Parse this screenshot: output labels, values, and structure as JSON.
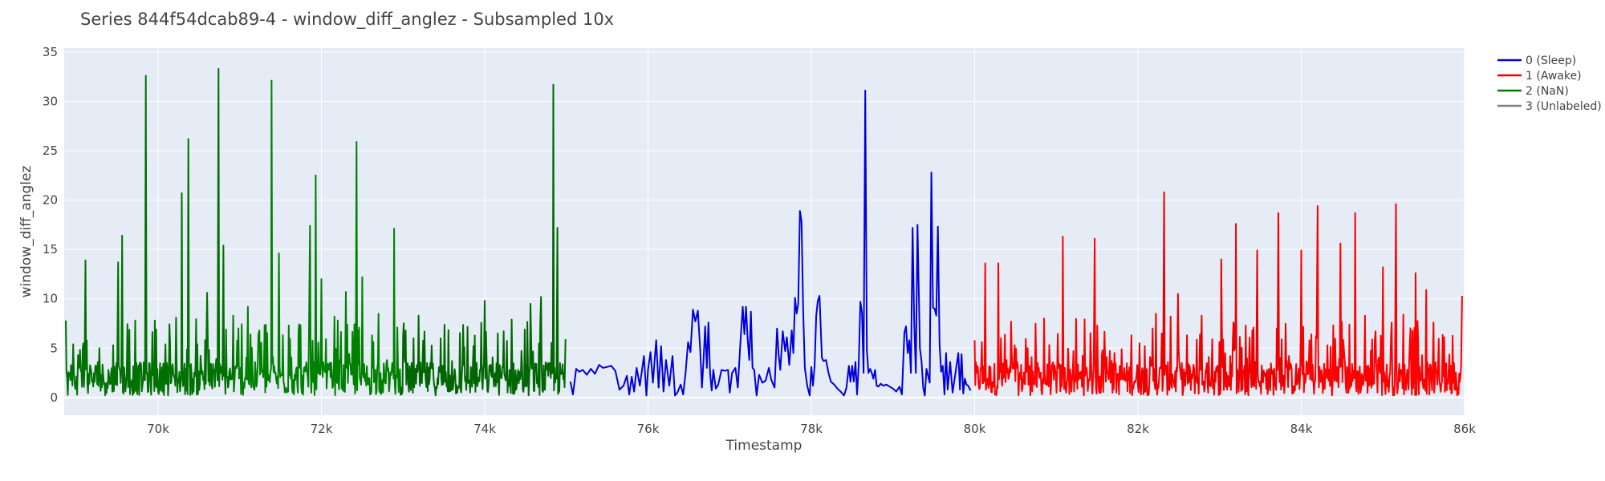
{
  "chart_data": {
    "type": "line",
    "title": "Series 844f54dcab89-4 - window_diff_anglez - Subsampled 10x",
    "xlabel": "Timestamp",
    "ylabel": "window_diff_anglez",
    "xlim": [
      68850,
      86000
    ],
    "ylim": [
      -1.8,
      35.4
    ],
    "x_ticks": [
      70000,
      72000,
      74000,
      76000,
      78000,
      80000,
      82000,
      84000,
      86000
    ],
    "x_tick_labels": [
      "70k",
      "72k",
      "74k",
      "76k",
      "78k",
      "80k",
      "82k",
      "84k",
      "86k"
    ],
    "y_ticks": [
      0,
      5,
      10,
      15,
      20,
      25,
      30,
      35
    ],
    "y_tick_labels": [
      "0",
      "5",
      "10",
      "15",
      "20",
      "25",
      "30",
      "35"
    ],
    "grid": true,
    "legend_position": "top-right",
    "series": [
      {
        "name": "0 (Sleep)",
        "color": "#0000dd",
        "segment_colors": [
          "#0000dd"
        ],
        "points": [
          [
            75050,
            1.6
          ],
          [
            75080,
            0.3
          ],
          [
            75120,
            2.9
          ],
          [
            75160,
            2.6
          ],
          [
            75200,
            2.8
          ],
          [
            75250,
            2.3
          ],
          [
            75300,
            2.9
          ],
          [
            75350,
            2.4
          ],
          [
            75400,
            3.3
          ],
          [
            75450,
            3.0
          ],
          [
            75500,
            3.1
          ],
          [
            75550,
            3.2
          ],
          [
            75600,
            2.7
          ],
          [
            75650,
            0.8
          ],
          [
            75700,
            1.2
          ],
          [
            75740,
            2.2
          ],
          [
            75770,
            0.3
          ],
          [
            75800,
            2.1
          ],
          [
            75830,
            0.6
          ],
          [
            75860,
            3.0
          ],
          [
            75900,
            1.2
          ],
          [
            75950,
            4.2
          ],
          [
            75980,
            0.2
          ],
          [
            76000,
            2.8
          ],
          [
            76030,
            4.6
          ],
          [
            76060,
            1.5
          ],
          [
            76100,
            5.8
          ],
          [
            76130,
            1.0
          ],
          [
            76160,
            5.2
          ],
          [
            76190,
            0.6
          ],
          [
            76220,
            3.8
          ],
          [
            76260,
            1.2
          ],
          [
            76300,
            4.2
          ],
          [
            76330,
            0.2
          ],
          [
            76360,
            0.5
          ],
          [
            76400,
            1.3
          ],
          [
            76430,
            0.3
          ],
          [
            76460,
            2.5
          ],
          [
            76490,
            5.6
          ],
          [
            76520,
            4.6
          ],
          [
            76550,
            8.9
          ],
          [
            76580,
            7.7
          ],
          [
            76610,
            8.8
          ],
          [
            76640,
            4.7
          ],
          [
            76660,
            1.0
          ],
          [
            76680,
            3.8
          ],
          [
            76700,
            7.2
          ],
          [
            76720,
            3.0
          ],
          [
            76740,
            7.6
          ],
          [
            76760,
            2.5
          ],
          [
            76780,
            0.7
          ],
          [
            76800,
            2.8
          ],
          [
            76830,
            0.9
          ],
          [
            76860,
            1.3
          ],
          [
            76900,
            2.8
          ],
          [
            76940,
            2.7
          ],
          [
            76980,
            2.8
          ],
          [
            77000,
            0.5
          ],
          [
            77030,
            2.5
          ],
          [
            77070,
            3.0
          ],
          [
            77100,
            1.0
          ],
          [
            77130,
            5.4
          ],
          [
            77160,
            9.2
          ],
          [
            77180,
            6.4
          ],
          [
            77200,
            9.2
          ],
          [
            77220,
            6.0
          ],
          [
            77240,
            3.8
          ],
          [
            77260,
            8.7
          ],
          [
            77280,
            3.0
          ],
          [
            77300,
            2.8
          ],
          [
            77330,
            0.2
          ],
          [
            77360,
            2.3
          ],
          [
            77400,
            1.5
          ],
          [
            77440,
            1.7
          ],
          [
            77480,
            3.0
          ],
          [
            77510,
            1.8
          ],
          [
            77550,
            1.0
          ],
          [
            77580,
            7.0
          ],
          [
            77600,
            4.3
          ],
          [
            77620,
            2.8
          ],
          [
            77650,
            6.7
          ],
          [
            77680,
            4.7
          ],
          [
            77700,
            6.1
          ],
          [
            77730,
            3.3
          ],
          [
            77760,
            6.8
          ],
          [
            77780,
            4.5
          ],
          [
            77800,
            10.1
          ],
          [
            77820,
            8.5
          ],
          [
            77840,
            9.5
          ],
          [
            77860,
            18.9
          ],
          [
            77880,
            17.8
          ],
          [
            77900,
            9.0
          ],
          [
            77920,
            3.0
          ],
          [
            77950,
            1.2
          ],
          [
            77980,
            0.2
          ],
          [
            78000,
            3.1
          ],
          [
            78020,
            1.2
          ],
          [
            78040,
            3.2
          ],
          [
            78060,
            8.3
          ],
          [
            78080,
            9.8
          ],
          [
            78100,
            10.3
          ],
          [
            78130,
            4.0
          ],
          [
            78150,
            3.7
          ],
          [
            78180,
            3.8
          ],
          [
            78210,
            2.5
          ],
          [
            78240,
            1.6
          ],
          [
            78280,
            1.3
          ],
          [
            78320,
            0.9
          ],
          [
            78360,
            0.6
          ],
          [
            78400,
            0.2
          ],
          [
            78430,
            1.0
          ],
          [
            78460,
            3.2
          ],
          [
            78480,
            1.6
          ],
          [
            78500,
            3.2
          ],
          [
            78520,
            1.6
          ],
          [
            78540,
            3.6
          ],
          [
            78560,
            0.3
          ],
          [
            78580,
            3.2
          ],
          [
            78600,
            9.7
          ],
          [
            78620,
            8.6
          ],
          [
            78640,
            2.5
          ],
          [
            78660,
            31.1
          ],
          [
            78680,
            4.8
          ],
          [
            78700,
            2.5
          ],
          [
            78720,
            2.9
          ],
          [
            78740,
            2.5
          ],
          [
            78760,
            1.9
          ],
          [
            78780,
            2.8
          ],
          [
            78800,
            1.2
          ],
          [
            78820,
            1.1
          ],
          [
            78850,
            1.4
          ],
          [
            78880,
            1.2
          ],
          [
            78920,
            1.3
          ],
          [
            78960,
            1.1
          ],
          [
            79000,
            0.9
          ],
          [
            79040,
            0.6
          ],
          [
            79080,
            1.1
          ],
          [
            79110,
            0.3
          ],
          [
            79140,
            6.6
          ],
          [
            79160,
            7.2
          ],
          [
            79180,
            4.5
          ],
          [
            79200,
            5.8
          ],
          [
            79220,
            2.5
          ],
          [
            79240,
            17.2
          ],
          [
            79260,
            7.6
          ],
          [
            79280,
            2.5
          ],
          [
            79300,
            17.5
          ],
          [
            79330,
            5.0
          ],
          [
            79350,
            3.6
          ],
          [
            79370,
            1.0
          ],
          [
            79390,
            0.2
          ],
          [
            79410,
            2.9
          ],
          [
            79430,
            2.2
          ],
          [
            79450,
            1.5
          ],
          [
            79470,
            22.8
          ],
          [
            79490,
            9.1
          ],
          [
            79510,
            9.0
          ],
          [
            79530,
            8.3
          ],
          [
            79550,
            17.3
          ],
          [
            79570,
            5.4
          ],
          [
            79590,
            2.6
          ],
          [
            79610,
            3.2
          ],
          [
            79630,
            0.3
          ],
          [
            79650,
            4.5
          ],
          [
            79670,
            0.8
          ],
          [
            79700,
            3.6
          ],
          [
            79730,
            0.5
          ],
          [
            79760,
            2.2
          ],
          [
            79800,
            4.5
          ],
          [
            79820,
            0.8
          ],
          [
            79840,
            4.4
          ],
          [
            79860,
            0.4
          ],
          [
            79880,
            1.9
          ],
          [
            79900,
            1.3
          ],
          [
            79920,
            1.2
          ],
          [
            79950,
            0.7
          ]
        ]
      },
      {
        "name": "1 (Awake)",
        "color": "#ee0000",
        "segment_colors": [
          "#ff0000",
          "#ee0000",
          "#ff0000"
        ],
        "spikes": [
          [
            80000,
            5.8
          ],
          [
            80130,
            13.6
          ],
          [
            80290,
            13.6
          ],
          [
            80390,
            3.8
          ],
          [
            80490,
            5.3
          ],
          [
            80650,
            5.0
          ],
          [
            80850,
            8.0
          ],
          [
            81080,
            16.3
          ],
          [
            81210,
            4.7
          ],
          [
            81470,
            16.1
          ],
          [
            81600,
            3.4
          ],
          [
            81800,
            4.9
          ],
          [
            81920,
            6.3
          ],
          [
            82020,
            5.5
          ],
          [
            82220,
            8.5
          ],
          [
            82320,
            20.8
          ],
          [
            82400,
            8.2
          ],
          [
            82490,
            10.5
          ],
          [
            82600,
            6.3
          ],
          [
            82780,
            8.3
          ],
          [
            82910,
            5.9
          ],
          [
            83020,
            14.0
          ],
          [
            83130,
            4.2
          ],
          [
            83200,
            17.6
          ],
          [
            83320,
            7.3
          ],
          [
            83460,
            14.9
          ],
          [
            83580,
            2.8
          ],
          [
            83720,
            18.7
          ],
          [
            83850,
            4.2
          ],
          [
            84000,
            14.9
          ],
          [
            84100,
            5.8
          ],
          [
            84200,
            19.4
          ],
          [
            84320,
            5.3
          ],
          [
            84480,
            15.6
          ],
          [
            84590,
            7.4
          ],
          [
            84660,
            18.7
          ],
          [
            84780,
            8.3
          ],
          [
            84910,
            6.7
          ],
          [
            85000,
            13.2
          ],
          [
            85100,
            6.4
          ],
          [
            85160,
            19.6
          ],
          [
            85250,
            8.4
          ],
          [
            85330,
            5.6
          ],
          [
            85400,
            12.6
          ],
          [
            85530,
            10.9
          ],
          [
            85620,
            7.6
          ],
          [
            85750,
            6.1
          ],
          [
            85870,
            3.5
          ],
          [
            85970,
            10.3
          ]
        ]
      },
      {
        "name": "2 (NaN)",
        "color": "#008000",
        "segment_colors": [
          "#007000",
          "#008000",
          "#006600"
        ],
        "spikes": [
          [
            68870,
            7.8
          ],
          [
            68960,
            5.4
          ],
          [
            69020,
            4.3
          ],
          [
            69110,
            13.9
          ],
          [
            69280,
            5.0
          ],
          [
            69450,
            5.3
          ],
          [
            69510,
            13.7
          ],
          [
            69560,
            16.4
          ],
          [
            69720,
            7.8
          ],
          [
            69850,
            32.6
          ],
          [
            69960,
            7.8
          ],
          [
            70090,
            5.4
          ],
          [
            70220,
            8.1
          ],
          [
            70290,
            20.7
          ],
          [
            70370,
            26.2
          ],
          [
            70480,
            5.4
          ],
          [
            70600,
            10.6
          ],
          [
            70740,
            33.3
          ],
          [
            70800,
            15.4
          ],
          [
            70920,
            8.3
          ],
          [
            71100,
            9.2
          ],
          [
            71240,
            6.8
          ],
          [
            71390,
            32.1
          ],
          [
            71480,
            14.6
          ],
          [
            71600,
            7.3
          ],
          [
            71720,
            6.8
          ],
          [
            71860,
            17.4
          ],
          [
            71930,
            22.5
          ],
          [
            72000,
            12.0
          ],
          [
            72160,
            8.2
          ],
          [
            72300,
            10.7
          ],
          [
            72430,
            25.9
          ],
          [
            72500,
            12.2
          ],
          [
            72620,
            6.3
          ],
          [
            72700,
            8.5
          ],
          [
            72890,
            17.1
          ],
          [
            73000,
            6.2
          ],
          [
            73190,
            8.3
          ],
          [
            73460,
            6.0
          ],
          [
            73600,
            3.7
          ],
          [
            73750,
            5.1
          ],
          [
            74000,
            9.8
          ],
          [
            74160,
            6.5
          ],
          [
            74330,
            7.9
          ],
          [
            74560,
            9.5
          ],
          [
            74690,
            10.2
          ],
          [
            74840,
            31.7
          ],
          [
            74890,
            17.2
          ],
          [
            74990,
            5.9
          ]
        ]
      },
      {
        "name": "3 (Unlabeled)",
        "color": "#808080",
        "segment_colors": [
          "#808080"
        ],
        "points": []
      }
    ]
  }
}
